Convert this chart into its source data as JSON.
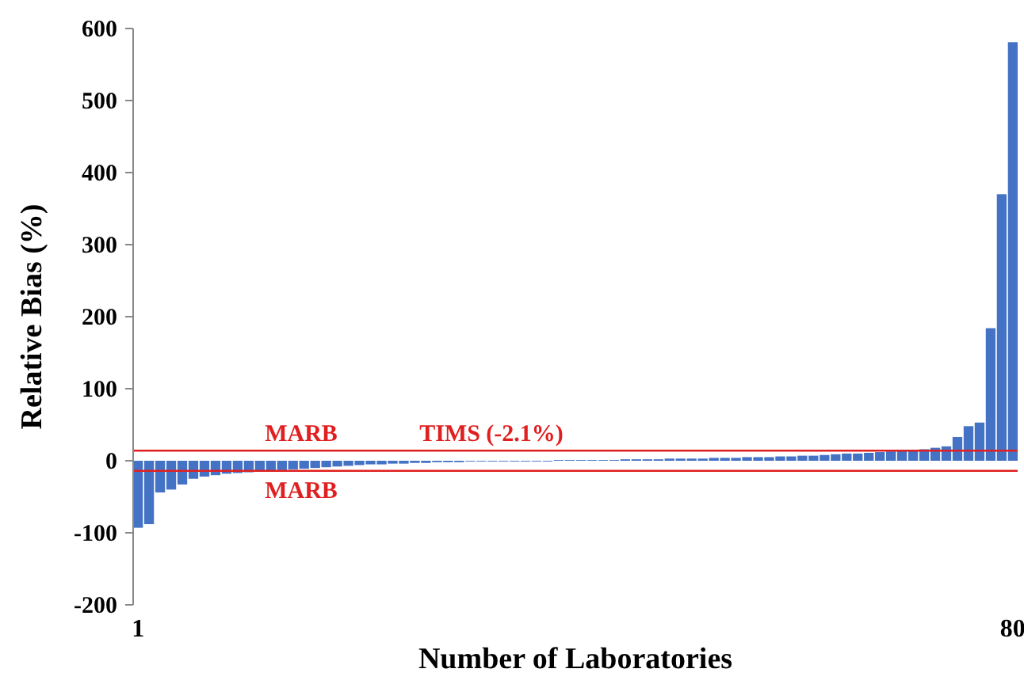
{
  "chart_data": {
    "type": "bar",
    "xlabel": "Number of Laboratories",
    "ylabel": "Relative Bias (%)",
    "categories": [
      "1",
      null,
      null,
      null,
      null,
      null,
      null,
      null,
      null,
      null,
      null,
      null,
      null,
      null,
      null,
      null,
      null,
      null,
      null,
      null,
      null,
      null,
      null,
      null,
      null,
      null,
      null,
      null,
      null,
      null,
      null,
      null,
      null,
      null,
      null,
      null,
      null,
      null,
      null,
      null,
      null,
      null,
      null,
      null,
      null,
      null,
      null,
      null,
      null,
      null,
      null,
      null,
      null,
      null,
      null,
      null,
      null,
      null,
      null,
      null,
      null,
      null,
      null,
      null,
      null,
      null,
      null,
      null,
      null,
      null,
      null,
      null,
      null,
      null,
      null,
      null,
      null,
      null,
      null,
      "80"
    ],
    "values": [
      -93,
      -88,
      -44,
      -40,
      -33,
      -25,
      -22,
      -20,
      -18,
      -17,
      -16,
      -15,
      -14,
      -13,
      -12,
      -11,
      -10,
      -9,
      -8,
      -7,
      -6,
      -5,
      -5,
      -4,
      -4,
      -3,
      -3,
      -2,
      -2,
      -2,
      -1,
      -1,
      -1,
      -1,
      -1,
      -1,
      -1,
      -1,
      1,
      1,
      1,
      1,
      1,
      1,
      2,
      2,
      2,
      2,
      3,
      3,
      3,
      3,
      4,
      4,
      4,
      5,
      5,
      5,
      6,
      6,
      7,
      7,
      8,
      9,
      10,
      10,
      11,
      12,
      13,
      14,
      15,
      16,
      18,
      20,
      33,
      48,
      53,
      184,
      370,
      581
    ],
    "color": "#4472c4",
    "ylim": [
      -200,
      600
    ],
    "yticks": [
      -200,
      -100,
      0,
      100,
      200,
      300,
      400,
      500,
      600
    ],
    "grid": false,
    "ref_lines": [
      {
        "axis": "y",
        "value": 14,
        "label": "MARB",
        "color": "#e02020"
      },
      {
        "axis": "y",
        "value": -14,
        "label": "MARB",
        "color": "#e02020"
      }
    ],
    "annotations": [
      "TIMS (-2.1%)"
    ]
  }
}
